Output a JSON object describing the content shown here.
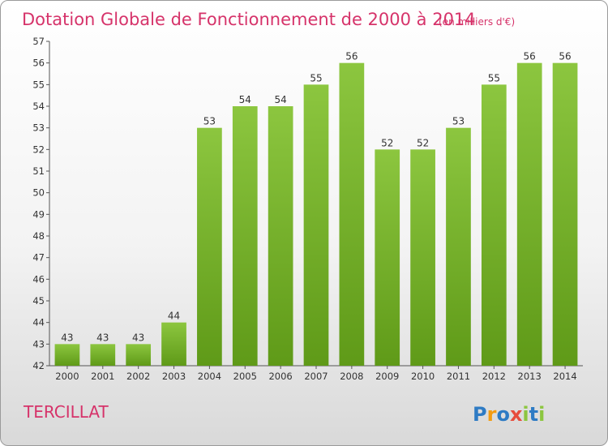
{
  "chart_data": {
    "type": "bar",
    "title": "Dotation Globale de Fonctionnement de 2000 à 2014",
    "subtitle": "(en milliers d'€)",
    "categories": [
      "2000",
      "2001",
      "2002",
      "2003",
      "2004",
      "2005",
      "2006",
      "2007",
      "2008",
      "2009",
      "2010",
      "2011",
      "2012",
      "2013",
      "2014"
    ],
    "values": [
      43,
      43,
      43,
      44,
      53,
      54,
      54,
      55,
      56,
      52,
      52,
      53,
      55,
      56,
      56
    ],
    "ylim": [
      42,
      57
    ],
    "yticks": [
      42,
      43,
      44,
      45,
      46,
      47,
      48,
      49,
      50,
      51,
      52,
      53,
      54,
      55,
      56,
      57
    ],
    "grid": false,
    "bar_color": "#8cc63f",
    "bar_color_dark": "#5f9a18"
  },
  "footer": {
    "place": "TERCILLAT",
    "logo_letters": [
      "P",
      "r",
      "o",
      "x",
      "i",
      "t",
      "i"
    ],
    "logo_colors": [
      "#2e7bc4",
      "#f39c12",
      "#2e7bc4",
      "#e74c3c",
      "#8cc63f",
      "#2e7bc4",
      "#8cc63f"
    ]
  }
}
